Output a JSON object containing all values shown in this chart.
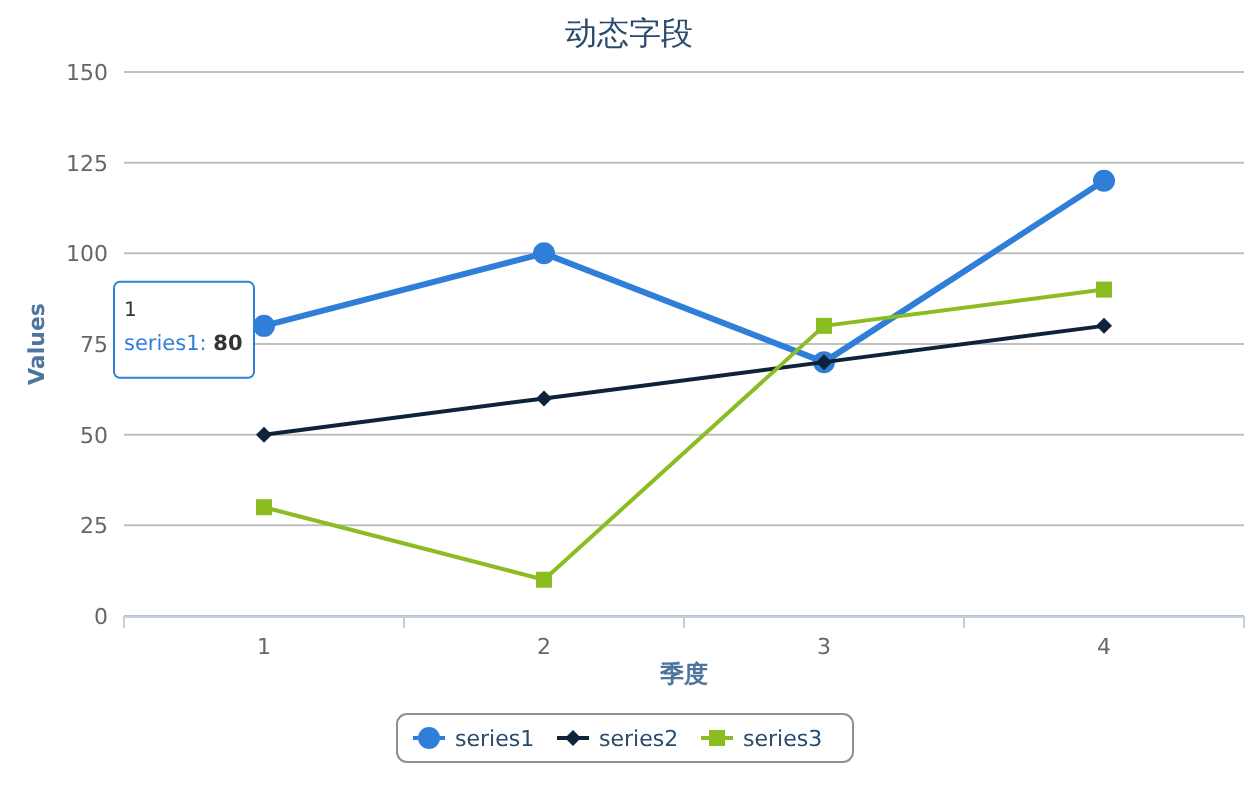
{
  "chart_data": {
    "type": "line",
    "title": "动态字段",
    "xlabel": "季度",
    "ylabel": "Values",
    "categories": [
      "1",
      "2",
      "3",
      "4"
    ],
    "ylim": [
      0,
      150
    ],
    "yticks": [
      0,
      25,
      50,
      75,
      100,
      125,
      150
    ],
    "grid": "y",
    "legend": "bottom",
    "series": [
      {
        "name": "series1",
        "color": "#2f7ed8",
        "marker": "circle",
        "values": [
          80,
          100,
          70,
          120
        ]
      },
      {
        "name": "series2",
        "color": "#0d233a",
        "marker": "diamond",
        "values": [
          50,
          60,
          70,
          80
        ]
      },
      {
        "name": "series3",
        "color": "#8bbc21",
        "marker": "square",
        "values": [
          30,
          10,
          80,
          90
        ]
      }
    ],
    "annotations": [
      "1",
      "series1: **80**"
    ]
  }
}
